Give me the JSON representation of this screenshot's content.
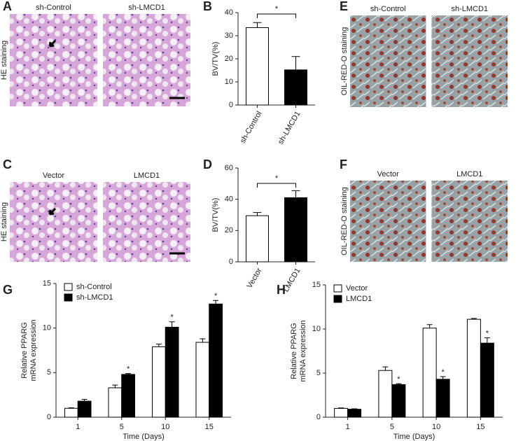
{
  "image_panels": [
    {
      "letter": "A",
      "side_label": "HE staining",
      "images": [
        "sh-Control",
        "sh-LMCD1"
      ],
      "style": "he"
    },
    {
      "letter": "C",
      "side_label": "HE staining",
      "images": [
        "Vector",
        "LMCD1"
      ],
      "style": "he"
    },
    {
      "letter": "E",
      "side_label": "OIL-RED-O staining",
      "images": [
        "sh-Control",
        "sh-LMCD1"
      ],
      "style": "oil"
    },
    {
      "letter": "F",
      "side_label": "OIL-RED-O staining",
      "images": [
        "Vector",
        "LMCD1"
      ],
      "style": "oil"
    }
  ],
  "chart_data": [
    {
      "letter": "B",
      "type": "bar",
      "ylabel": [
        "BV/TV(%)"
      ],
      "categories": [
        "sh-Control",
        "sh-LMCD1"
      ],
      "values": [
        33.5,
        15.2
      ],
      "errors": [
        2.2,
        5.8
      ],
      "colors": [
        "#ffffff",
        "#000000"
      ],
      "ylim": [
        0,
        40
      ],
      "yticks": [
        0,
        10,
        20,
        30,
        40
      ],
      "significance": "*"
    },
    {
      "letter": "D",
      "type": "bar",
      "ylabel": [
        "BV/TV(%)"
      ],
      "categories": [
        "Vector",
        "LMCD1"
      ],
      "values": [
        29.5,
        41
      ],
      "errors": [
        2,
        4.5
      ],
      "colors": [
        "#ffffff",
        "#000000"
      ],
      "ylim": [
        0,
        60
      ],
      "yticks": [
        0,
        20,
        40,
        60
      ],
      "significance": "*"
    },
    {
      "letter": "G",
      "type": "grouped-bar",
      "ylabel": [
        "Relative PPARG",
        "mRNA expression"
      ],
      "xlabel": "Time (Days)",
      "categories": [
        "1",
        "5",
        "10",
        "15"
      ],
      "legend": "top-left",
      "series": [
        {
          "name": "sh-Control",
          "color": "#ffffff",
          "values": [
            1,
            3.3,
            7.9,
            8.4
          ],
          "errors": [
            0.05,
            0.3,
            0.3,
            0.4
          ],
          "labels": [
            null,
            null,
            null,
            null
          ]
        },
        {
          "name": "sh-LMCD1",
          "color": "#000000",
          "values": [
            1.8,
            4.8,
            10.1,
            12.7
          ],
          "errors": [
            0.2,
            0.1,
            0.6,
            0.4
          ],
          "labels": [
            null,
            "*",
            "*",
            "*"
          ]
        }
      ],
      "ylim": [
        0,
        15
      ],
      "yticks": [
        0,
        5,
        10,
        15
      ]
    },
    {
      "letter": "H",
      "type": "grouped-bar",
      "ylabel": [
        "Relative PPARG",
        "mRNA expression"
      ],
      "xlabel": "Time (Days)",
      "categories": [
        "1",
        "5",
        "10",
        "15"
      ],
      "legend": "top-left",
      "series": [
        {
          "name": "Vector",
          "color": "#ffffff",
          "values": [
            1,
            5.3,
            10.1,
            11.1
          ],
          "errors": [
            0.05,
            0.4,
            0.4,
            0.1
          ],
          "labels": [
            null,
            null,
            null,
            null
          ]
        },
        {
          "name": "LMCD1",
          "color": "#000000",
          "values": [
            0.9,
            3.7,
            4.3,
            8.4
          ],
          "errors": [
            0.05,
            0.1,
            0.3,
            0.6
          ],
          "labels": [
            null,
            "*",
            "*",
            "*"
          ]
        }
      ],
      "ylim": [
        0,
        15
      ],
      "yticks": [
        0,
        5,
        10,
        15
      ]
    }
  ]
}
